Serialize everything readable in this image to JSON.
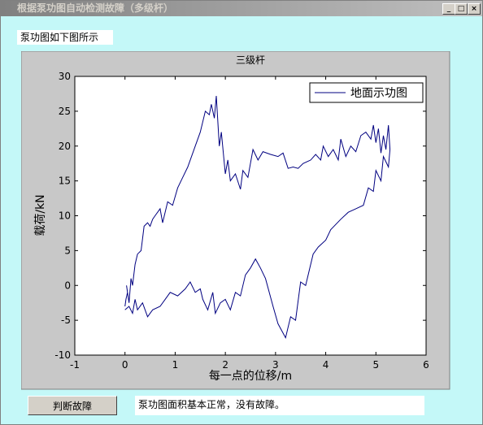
{
  "window": {
    "title": "根据泵功图自动检测故障（多级杆）"
  },
  "label": "泵功图如下图所示",
  "chart_data": {
    "type": "line",
    "title": "三级杆",
    "xlabel": "每一点的位移/m",
    "ylabel": "载荷/kN",
    "x": [
      0,
      0.02,
      0.05,
      0.03,
      0.08,
      0.12,
      0.15,
      0.2,
      0.25,
      0.32,
      0.38,
      0.45,
      0.5,
      0.55,
      0.6,
      0.7,
      0.75,
      0.85,
      0.95,
      1.05,
      1.15,
      1.25,
      1.4,
      1.5,
      1.6,
      1.68,
      1.72,
      1.78,
      1.82,
      1.88,
      1.92,
      2.0,
      2.05,
      2.1,
      2.2,
      2.3,
      2.35,
      2.45,
      2.55,
      2.65,
      2.75,
      2.9,
      3.05,
      3.15,
      3.25,
      3.35,
      3.45,
      3.55,
      3.7,
      3.8,
      3.9,
      3.95,
      4.05,
      4.15,
      4.25,
      4.3,
      4.4,
      4.5,
      4.6,
      4.7,
      4.8,
      4.9,
      4.95,
      5.0,
      5.05,
      5.1,
      5.15,
      5.2,
      5.25,
      5.28,
      5.25,
      5.15,
      5.1,
      5.0,
      4.95,
      4.85,
      4.75,
      4.6,
      4.45,
      4.3,
      4.1,
      4.0,
      3.85,
      3.75,
      3.6,
      3.5,
      3.4,
      3.3,
      3.2,
      3.05,
      2.95,
      2.8,
      2.7,
      2.6,
      2.5,
      2.4,
      2.3,
      2.2,
      2.1,
      2.0,
      1.9,
      1.8,
      1.75,
      1.65,
      1.55,
      1.5,
      1.4,
      1.3,
      1.2,
      1.05,
      0.9,
      0.8,
      0.7,
      0.55,
      0.45,
      0.35,
      0.25,
      0.2,
      0.15,
      0.08,
      0
    ],
    "series": [
      {
        "name": "地面示功图",
        "color": "#000080",
        "values": [
          -3,
          -2,
          -1,
          0,
          -2.5,
          1,
          0,
          3,
          4.5,
          5,
          8.5,
          9,
          8.5,
          9.5,
          10,
          11,
          9,
          12,
          11.5,
          14,
          15.5,
          17,
          20,
          22,
          25,
          24.5,
          26,
          24,
          27.2,
          20,
          22,
          16,
          18,
          15,
          16,
          13.8,
          16.5,
          15.5,
          19.5,
          18,
          19.2,
          18.8,
          18.5,
          19,
          16.8,
          17,
          16.8,
          17.5,
          18,
          18.8,
          18,
          20,
          18.5,
          19.5,
          18,
          21,
          18.5,
          20,
          19.2,
          21.5,
          22,
          21,
          23,
          20.5,
          22.5,
          19,
          21.5,
          19.5,
          23,
          19.5,
          17,
          18.5,
          15,
          16.5,
          13.5,
          14,
          11.5,
          11,
          10.5,
          9.5,
          8,
          6.5,
          5.5,
          4.5,
          0,
          0.5,
          -5,
          -4.5,
          -7.5,
          -5.5,
          -3,
          1,
          2.5,
          3.8,
          2.5,
          1.5,
          -1.5,
          -1,
          -3.5,
          -2,
          -2.5,
          -4,
          -1,
          -3.5,
          -2,
          -0.5,
          -1,
          0.5,
          -0.5,
          -1.5,
          -1,
          -2,
          -3,
          -3.5,
          -4.5,
          -2.5,
          -3.5,
          -2,
          -4,
          -3,
          -3.5
        ]
      }
    ],
    "xlim": [
      -1,
      6
    ],
    "xticks": [
      -1,
      0,
      1,
      2,
      3,
      4,
      5,
      6
    ],
    "ylim": [
      -10,
      30
    ],
    "yticks": [
      -10,
      -5,
      0,
      5,
      10,
      15,
      20,
      25,
      30
    ],
    "legend": "upper right"
  },
  "button": "判断故障",
  "result": "泵功图面积基本正常，没有故障。"
}
